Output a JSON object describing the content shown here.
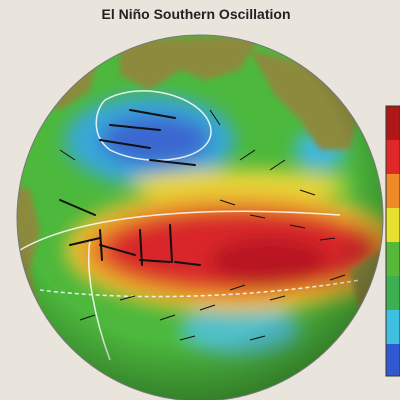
{
  "title": "El Niño Southern Oscillation"
}
